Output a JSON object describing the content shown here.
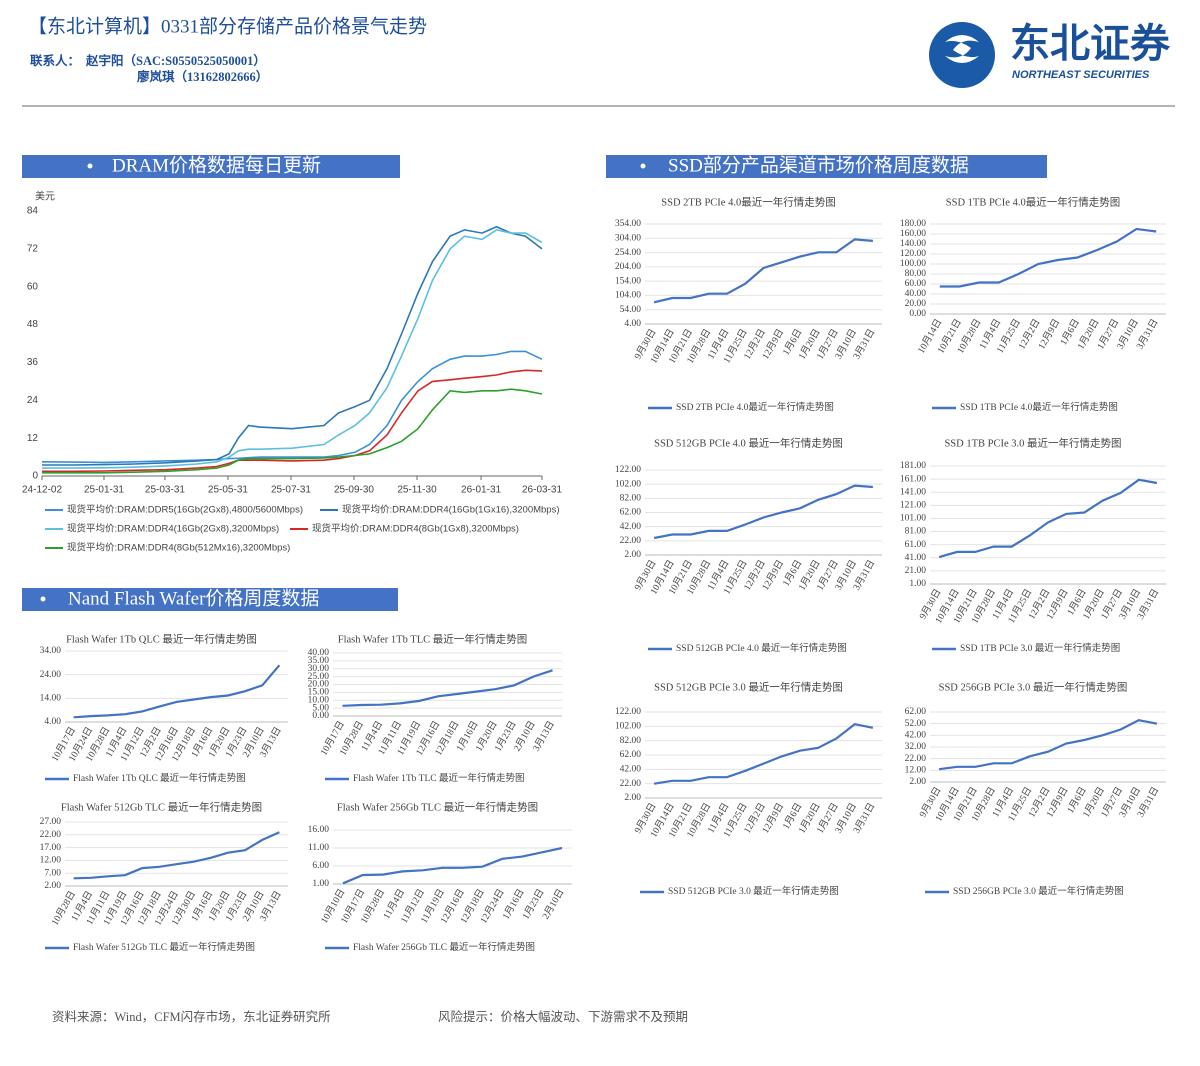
{
  "header": {
    "title": "【东北计算机】0331部分存储产品价格景气走势",
    "contact_label": "联系人：",
    "contacts": [
      "赵宇阳（SAC:S0550525050001）",
      "廖岚琪（13162802666）"
    ]
  },
  "logo": {
    "name": "东北证券",
    "english": "NORTHEAST SECURITIES"
  },
  "sections": [
    "DRAM价格数据每日更新",
    "SSD部分产品渠道市场价格周度数据",
    "Nand Flash Wafer价格周度数据"
  ],
  "footer": {
    "source": "资料来源：Wind，CFM闪存市场，东北证券研究所",
    "risk": "风险提示：价格大幅波动、下游需求不及预期"
  },
  "chart_data": [
    {
      "type": "line",
      "y_label": "美元",
      "grid": false,
      "x": [
        "24-12-02",
        "25-01-01",
        "25-02-01",
        "25-03-01",
        "25-04-01",
        "25-05-01",
        "25-05-20",
        "25-06-01",
        "25-06-10",
        "25-06-20",
        "25-07-01",
        "25-08-01",
        "25-09-01",
        "25-09-15",
        "25-10-01",
        "25-10-15",
        "25-11-01",
        "25-11-15",
        "25-12-01",
        "25-12-15",
        "26-01-01",
        "26-01-15",
        "26-02-01",
        "26-02-15",
        "26-03-01",
        "26-03-15",
        "26-03-31"
      ],
      "xlim": [
        "24-12-02",
        "26-03-31"
      ],
      "xticks": [
        "24-12-02",
        "25-01-31",
        "25-03-31",
        "25-05-31",
        "25-07-31",
        "25-09-30",
        "25-11-30",
        "26-01-31",
        "26-03-31"
      ],
      "ylim": [
        0,
        84
      ],
      "yticks": [
        0,
        12,
        24,
        36,
        48,
        60,
        72,
        84
      ],
      "series": [
        {
          "name": "现货平均价:DRAM:DDR5(16Gb(2Gx8),4800/5600Mbps)",
          "color": "#3a8fd6",
          "values": [
            4.5,
            4.4,
            4.3,
            4.5,
            4.8,
            5,
            5.2,
            5.5,
            5.6,
            5.8,
            6,
            6,
            6,
            6.5,
            7.5,
            10,
            16,
            24,
            30,
            34,
            37,
            38,
            38,
            38.5,
            39.5,
            39.5,
            37
          ]
        },
        {
          "name": "现货平均价:DRAM:DDR4(16Gb(1Gx16),3200Mbps)",
          "color": "#2b78b8",
          "values": [
            3.5,
            3.5,
            3.6,
            3.8,
            4.2,
            4.8,
            5.2,
            7,
            12,
            16,
            15.5,
            15,
            16,
            20,
            22,
            24,
            34,
            45,
            58,
            68,
            76,
            78,
            77,
            79,
            77,
            76,
            72
          ]
        },
        {
          "name": "现货平均价:DRAM:DDR4(16Gb(2Gx8),3200Mbps)",
          "color": "#5bc0de",
          "values": [
            2.5,
            2.5,
            2.6,
            2.8,
            3.2,
            3.8,
            4.5,
            6,
            8,
            8.5,
            8.5,
            8.8,
            10,
            13,
            16,
            20,
            28,
            38,
            50,
            62,
            72,
            76,
            75,
            78,
            77,
            77,
            74
          ]
        },
        {
          "name": "现货平均价:DRAM:DDR4(8Gb(1Gx8),3200Mbps)",
          "color": "#d62728",
          "values": [
            1.5,
            1.5,
            1.6,
            1.8,
            2,
            2.5,
            3,
            4,
            5,
            5,
            5,
            4.8,
            5,
            5.5,
            6.5,
            8,
            13,
            20,
            27,
            30,
            30.5,
            31,
            31.5,
            32,
            33,
            33.5,
            33.3
          ]
        },
        {
          "name": "现货平均价:DRAM:DDR4(8Gb(512Mx16),3200Mbps)",
          "color": "#2ca02c",
          "values": [
            1,
            1,
            1,
            1.2,
            1.5,
            2,
            2.5,
            3.5,
            5,
            5.5,
            5.5,
            5.5,
            5.7,
            6,
            6.5,
            7,
            9,
            11,
            15,
            21,
            27,
            26.5,
            27,
            27,
            27.5,
            27,
            26
          ]
        }
      ]
    },
    {
      "type": "line",
      "grid": true,
      "title": "Flash Wafer 1Tb QLC 最近一年行情走势图",
      "categories": [
        "10月17日",
        "10月24日",
        "10月28日",
        "11月4日",
        "11月12日",
        "12月2日",
        "12月16日",
        "12月18日",
        "1月16日",
        "1月20日",
        "1月23日",
        "2月10日",
        "3月13日"
      ],
      "ylim": [
        4,
        34
      ],
      "yticks": [
        {
          "value": 4,
          "label": "4.00"
        },
        {
          "value": 14,
          "label": "14.00"
        },
        {
          "value": 24,
          "label": "24.00"
        },
        {
          "value": 34,
          "label": "34.00"
        }
      ],
      "series": [
        {
          "name": "Flash Wafer 1Tb QLC 最近一年行情走势图",
          "color": "#4472c4",
          "values": [
            6,
            6.5,
            6.8,
            7.3,
            8.5,
            10.5,
            12.5,
            13.5,
            14.5,
            15.2,
            17,
            19.5,
            28
          ]
        }
      ]
    },
    {
      "type": "line",
      "grid": true,
      "title": "Flash Wafer 1Tb TLC 最近一年行情走势图",
      "categories": [
        "10月17日",
        "10月28日",
        "11月4日",
        "11月11日",
        "11月19日",
        "12月16日",
        "12月18日",
        "1月16日",
        "1月20日",
        "1月23日",
        "2月10日",
        "3月13日"
      ],
      "ylim": [
        0,
        40
      ],
      "yticks": [
        {
          "value": 0,
          "label": "0.00"
        },
        {
          "value": 5,
          "label": "5.00"
        },
        {
          "value": 10,
          "label": "10.00"
        },
        {
          "value": 15,
          "label": "15.00"
        },
        {
          "value": 20,
          "label": "20.00"
        },
        {
          "value": 25,
          "label": "25.00"
        },
        {
          "value": 30,
          "label": "30.00"
        },
        {
          "value": 35,
          "label": "35.00"
        },
        {
          "value": 40,
          "label": "40.00"
        }
      ],
      "series": [
        {
          "name": "Flash Wafer 1Tb TLC 最近一年行情走势图",
          "color": "#4472c4",
          "values": [
            6.5,
            7,
            7.2,
            8,
            9.5,
            12.5,
            14,
            15.5,
            17,
            19.5,
            25,
            29
          ]
        }
      ]
    },
    {
      "type": "line",
      "grid": true,
      "title": "Flash Wafer 512Gb TLC 最近一年行情走势图",
      "categories": [
        "10月28日",
        "11月4日",
        "11月11日",
        "11月19日",
        "12月16日",
        "12月18日",
        "12月24日",
        "12月30日",
        "1月16日",
        "1月20日",
        "1月23日",
        "2月10日",
        "3月13日"
      ],
      "ylim": [
        2,
        27
      ],
      "yticks": [
        {
          "value": 2,
          "label": "2.00"
        },
        {
          "value": 7,
          "label": "7.00"
        },
        {
          "value": 12,
          "label": "12.00"
        },
        {
          "value": 17,
          "label": "17.00"
        },
        {
          "value": 22,
          "label": "22.00"
        },
        {
          "value": 27,
          "label": "27.00"
        }
      ],
      "series": [
        {
          "name": "Flash Wafer 512Gb TLC 最近一年行情走势图",
          "color": "#4472c4",
          "values": [
            5,
            5.2,
            5.8,
            6.2,
            9,
            9.5,
            10.5,
            11.5,
            13,
            15,
            16,
            20,
            23
          ]
        }
      ]
    },
    {
      "type": "line",
      "grid": true,
      "title": "Flash Wafer 256Gb TLC 最近一年行情走势图",
      "categories": [
        "10月10日",
        "10月17日",
        "10月28日",
        "11月4日",
        "11月12日",
        "11月19日",
        "12月16日",
        "12月18日",
        "12月24日",
        "1月16日",
        "1月23日",
        "2月10日"
      ],
      "ylim": [
        1,
        16
      ],
      "yticks": [
        {
          "value": 1,
          "label": "1.00"
        },
        {
          "value": 6,
          "label": "6.00"
        },
        {
          "value": 11,
          "label": "11.00"
        },
        {
          "value": 16,
          "label": "16.00"
        }
      ],
      "series": [
        {
          "name": "Flash Wafer 256Gb TLC 最近一年行情走势图",
          "color": "#4472c4",
          "values": [
            1.2,
            3.5,
            3.6,
            4.5,
            4.8,
            5.5,
            5.5,
            5.8,
            8,
            8.6,
            9.8,
            11
          ]
        }
      ]
    },
    {
      "type": "line",
      "grid": true,
      "title": "SSD 2TB PCIe 4.0最近一年行情走势图",
      "categories": [
        "9月30日",
        "10月14日",
        "10月21日",
        "10月28日",
        "11月4日",
        "11月25日",
        "12月2日",
        "12月9日",
        "1月6日",
        "1月20日",
        "1月27日",
        "3月10日",
        "3月31日"
      ],
      "ylim": [
        4,
        354
      ],
      "yticks": [
        {
          "value": 4,
          "label": "4.00"
        },
        {
          "value": 54,
          "label": "54.00"
        },
        {
          "value": 104,
          "label": "104.00"
        },
        {
          "value": 154,
          "label": "154.00"
        },
        {
          "value": 204,
          "label": "204.00"
        },
        {
          "value": 254,
          "label": "254.00"
        },
        {
          "value": 304,
          "label": "304.00"
        },
        {
          "value": 354,
          "label": "354.00"
        }
      ],
      "series": [
        {
          "name": "SSD 2TB PCIe 4.0最近一年行情走势图",
          "color": "#4472c4",
          "values": [
            80,
            95,
            95,
            110,
            110,
            145,
            200,
            220,
            240,
            255,
            255,
            300,
            295
          ]
        }
      ]
    },
    {
      "type": "line",
      "grid": true,
      "title": "SSD 1TB PCIe 4.0最近一年行情走势图",
      "categories": [
        "10月14日",
        "10月21日",
        "10月28日",
        "11月4日",
        "11月25日",
        "12月2日",
        "12月9日",
        "1月6日",
        "1月20日",
        "1月27日",
        "3月10日",
        "3月31日"
      ],
      "ylim": [
        0,
        180
      ],
      "yticks": [
        {
          "value": 0,
          "label": "0.00"
        },
        {
          "value": 20,
          "label": "20.00"
        },
        {
          "value": 40,
          "label": "40.00"
        },
        {
          "value": 60,
          "label": "60.00"
        },
        {
          "value": 80,
          "label": "80.00"
        },
        {
          "value": 100,
          "label": "100.00"
        },
        {
          "value": 120,
          "label": "120.00"
        },
        {
          "value": 140,
          "label": "140.00"
        },
        {
          "value": 160,
          "label": "160.00"
        },
        {
          "value": 180,
          "label": "180.00"
        }
      ],
      "series": [
        {
          "name": "SSD 1TB PCIe 4.0最近一年行情走势图",
          "color": "#4472c4",
          "values": [
            55,
            55,
            63,
            63,
            80,
            100,
            108,
            113,
            128,
            145,
            170,
            165
          ]
        }
      ]
    },
    {
      "type": "line",
      "grid": true,
      "title": "SSD 512GB PCIe 4.0 最近一年行情走势图",
      "categories": [
        "9月30日",
        "10月14日",
        "10月21日",
        "10月28日",
        "11月4日",
        "11月25日",
        "12月2日",
        "12月9日",
        "1月6日",
        "1月20日",
        "1月27日",
        "3月10日",
        "3月31日"
      ],
      "ylim": [
        2,
        122
      ],
      "yticks": [
        {
          "value": 2,
          "label": "2.00"
        },
        {
          "value": 22,
          "label": "22.00"
        },
        {
          "value": 42,
          "label": "42.00"
        },
        {
          "value": 62,
          "label": "62.00"
        },
        {
          "value": 82,
          "label": "82.00"
        },
        {
          "value": 102,
          "label": "102.00"
        },
        {
          "value": 122,
          "label": "122.00"
        }
      ],
      "series": [
        {
          "name": "SSD 512GB PCIe 4.0 最近一年行情走势图",
          "color": "#4472c4",
          "values": [
            26,
            31,
            31,
            36,
            36,
            45,
            55,
            62,
            68,
            80,
            88,
            100,
            98
          ]
        }
      ]
    },
    {
      "type": "line",
      "grid": true,
      "title": "SSD 1TB PCIe 3.0 最近一年行情走势图",
      "categories": [
        "9月30日",
        "10月14日",
        "10月21日",
        "10月28日",
        "11月4日",
        "11月25日",
        "12月2日",
        "12月9日",
        "1月6日",
        "1月20日",
        "1月27日",
        "3月10日",
        "3月31日"
      ],
      "ylim": [
        1,
        181
      ],
      "yticks": [
        {
          "value": 1,
          "label": "1.00"
        },
        {
          "value": 21,
          "label": "21.00"
        },
        {
          "value": 41,
          "label": "41.00"
        },
        {
          "value": 61,
          "label": "61.00"
        },
        {
          "value": 81,
          "label": "81.00"
        },
        {
          "value": 101,
          "label": "101.00"
        },
        {
          "value": 121,
          "label": "121.00"
        },
        {
          "value": 141,
          "label": "141.00"
        },
        {
          "value": 161,
          "label": "161.00"
        },
        {
          "value": 181,
          "label": "181.00"
        }
      ],
      "series": [
        {
          "name": "SSD 1TB PCIe 3.0 最近一年行情走势图",
          "color": "#4472c4",
          "values": [
            42,
            50,
            50,
            58,
            58,
            75,
            95,
            108,
            110,
            128,
            140,
            160,
            155
          ]
        }
      ]
    },
    {
      "type": "line",
      "grid": true,
      "title": "SSD 512GB PCIe 3.0 最近一年行情走势图",
      "categories": [
        "9月30日",
        "10月14日",
        "10月21日",
        "10月28日",
        "11月4日",
        "11月25日",
        "12月2日",
        "12月9日",
        "1月6日",
        "1月20日",
        "1月27日",
        "3月10日",
        "3月31日"
      ],
      "ylim": [
        2,
        122
      ],
      "yticks": [
        {
          "value": 2,
          "label": "2.00"
        },
        {
          "value": 22,
          "label": "22.00"
        },
        {
          "value": 42,
          "label": "42.00"
        },
        {
          "value": 62,
          "label": "62.00"
        },
        {
          "value": 82,
          "label": "82.00"
        },
        {
          "value": 102,
          "label": "102.00"
        },
        {
          "value": 122,
          "label": "122.00"
        }
      ],
      "series": [
        {
          "name": "SSD 512GB PCIe 3.0 最近一年行情走势图",
          "color": "#4472c4",
          "values": [
            22,
            26,
            26,
            31,
            31,
            40,
            50,
            60,
            68,
            72,
            85,
            105,
            100
          ]
        }
      ]
    },
    {
      "type": "line",
      "grid": true,
      "title": "SSD 256GB PCIe 3.0 最近一年行情走势图",
      "categories": [
        "9月30日",
        "10月14日",
        "10月21日",
        "10月28日",
        "11月4日",
        "11月25日",
        "12月2日",
        "12月9日",
        "1月6日",
        "1月20日",
        "1月27日",
        "3月10日",
        "3月31日"
      ],
      "ylim": [
        2,
        62
      ],
      "yticks": [
        {
          "value": 2,
          "label": "2.00"
        },
        {
          "value": 12,
          "label": "12.00"
        },
        {
          "value": 22,
          "label": "22.00"
        },
        {
          "value": 32,
          "label": "32.00"
        },
        {
          "value": 42,
          "label": "42.00"
        },
        {
          "value": 52,
          "label": "52.00"
        },
        {
          "value": 62,
          "label": "62.00"
        }
      ],
      "series": [
        {
          "name": "SSD 256GB PCIe 3.0 最近一年行情走势图",
          "color": "#4472c4",
          "values": [
            13,
            15,
            15,
            18,
            18,
            24,
            28,
            35,
            38,
            42,
            47,
            55,
            52
          ]
        }
      ]
    }
  ]
}
